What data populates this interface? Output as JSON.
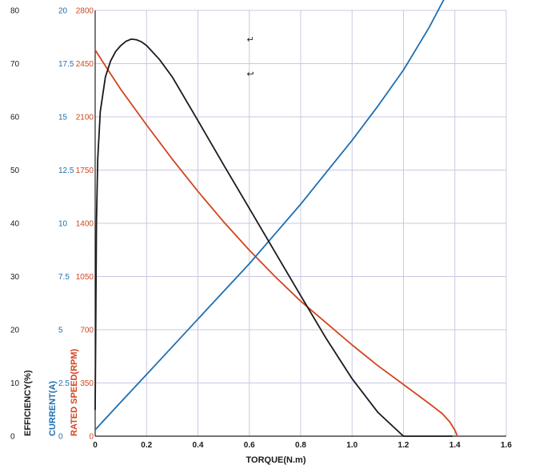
{
  "chart_data": {
    "type": "line",
    "xlabel": "TORQUE(N.m)",
    "xlim": [
      0,
      1.6
    ],
    "x_ticks": [
      "0",
      "0.2",
      "0.4",
      "0.6",
      "0.8",
      "1.0",
      "1.2",
      "1.4",
      "1.6"
    ],
    "y_axes": [
      {
        "label": "EFFICIENCY(%)",
        "color": "#1a1a1a",
        "range": [
          0,
          80
        ],
        "ticks": [
          "0",
          "10",
          "20",
          "30",
          "40",
          "50",
          "60",
          "70",
          "80"
        ]
      },
      {
        "label": "CURRENT(A)",
        "color": "#1f6fb2",
        "range": [
          0,
          20
        ],
        "ticks": [
          "0",
          "2.5",
          "5",
          "7.5",
          "10",
          "12.5",
          "15",
          "17.5",
          "20"
        ]
      },
      {
        "label": "RATED SPEED(RPM)",
        "color": "#d2451e",
        "range": [
          0,
          2800
        ],
        "ticks": [
          "0",
          "350",
          "700",
          "1050",
          "1400",
          "1750",
          "2100",
          "2450",
          "2800"
        ]
      }
    ],
    "grid": true,
    "annotations": [
      "↵",
      "↩"
    ],
    "series": [
      {
        "axis": "RATED SPEED(RPM)",
        "color": "#d2451e",
        "x": [
          0,
          0.05,
          0.1,
          0.2,
          0.3,
          0.4,
          0.5,
          0.6,
          0.7,
          0.8,
          0.9,
          1.0,
          1.1,
          1.2,
          1.3,
          1.35,
          1.38,
          1.4,
          1.41
        ],
        "y": [
          2540,
          2408,
          2280,
          2047,
          1822,
          1610,
          1410,
          1223,
          1050,
          888,
          744,
          600,
          464,
          340,
          215,
          150,
          95,
          40,
          0
        ]
      },
      {
        "axis": "CURRENT(A)",
        "color": "#1f6fb2",
        "x": [
          0,
          0.1,
          0.2,
          0.3,
          0.4,
          0.5,
          0.6,
          0.7,
          0.8,
          0.9,
          1.0,
          1.1,
          1.2,
          1.3,
          1.37
        ],
        "y": [
          0.3,
          1.6,
          2.9,
          4.2,
          5.5,
          6.8,
          8.1,
          9.5,
          10.9,
          12.4,
          13.9,
          15.5,
          17.2,
          19.2,
          20.8
        ]
      },
      {
        "axis": "EFFICIENCY(%)",
        "color": "#1a1a1a",
        "x": [
          0,
          0.005,
          0.01,
          0.02,
          0.04,
          0.06,
          0.08,
          0.1,
          0.12,
          0.14,
          0.16,
          0.18,
          0.2,
          0.25,
          0.3,
          0.4,
          0.5,
          0.6,
          0.7,
          0.8,
          0.9,
          1.0,
          1.1,
          1.2,
          1.3,
          1.35,
          1.37,
          1.38,
          1.39
        ],
        "y": [
          5,
          40,
          52,
          61,
          67.5,
          70.5,
          72.3,
          73.4,
          74.2,
          74.6,
          74.5,
          74.1,
          73.4,
          70.8,
          67.5,
          59.3,
          51,
          42.8,
          34.6,
          26.4,
          18.3,
          10.8,
          4.5,
          -0.6,
          -4.6,
          -6.1,
          -6.5,
          -6.6,
          -6.6
        ]
      }
    ]
  }
}
